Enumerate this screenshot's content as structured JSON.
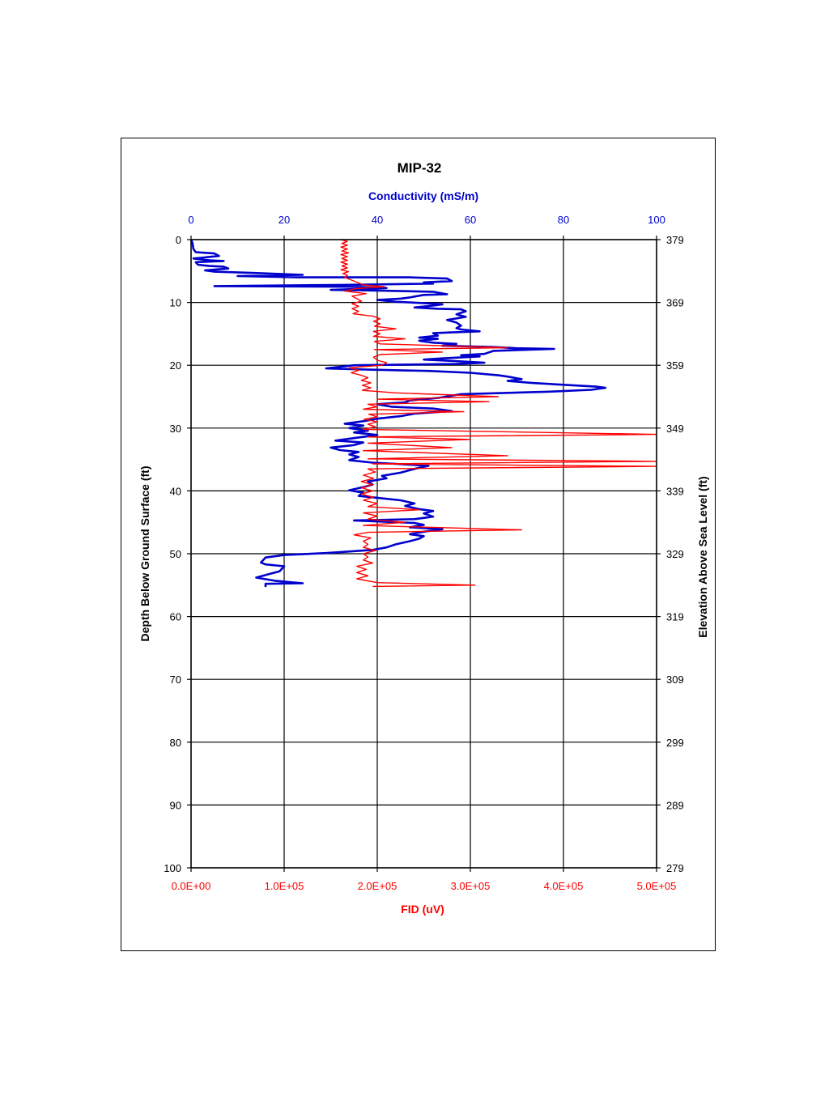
{
  "chart_data": {
    "type": "line",
    "title": "MIP-32",
    "ylabel_left": "Depth Below Ground Surface (ft)",
    "ylabel_right": "Elevation Above Sea Level (ft)",
    "ylim": [
      0,
      100
    ],
    "y_ticks": [
      0,
      10,
      20,
      30,
      40,
      50,
      60,
      70,
      80,
      90,
      100
    ],
    "y_ticks_right": [
      "379",
      "369",
      "359",
      "349",
      "339",
      "329",
      "319",
      "309",
      "299",
      "289",
      "279"
    ],
    "x_top": {
      "label": "Conductivity (mS/m)",
      "range": [
        0,
        100
      ],
      "ticks": [
        "0",
        "20",
        "40",
        "60",
        "80",
        "100"
      ],
      "color": "#0000cc"
    },
    "x_bottom": {
      "label": "FID (uV)",
      "range": [
        0,
        500000
      ],
      "ticks": [
        "0.0E+00",
        "1.0E+05",
        "2.0E+05",
        "3.0E+05",
        "4.0E+05",
        "5.0E+05"
      ],
      "color": "#ff0000"
    },
    "grid": true,
    "series": [
      {
        "axis": "top",
        "color": "#0000cc",
        "points": [
          [
            0,
            0
          ],
          [
            0.3,
            0.5
          ],
          [
            0.4,
            1
          ],
          [
            0.5,
            1.5
          ],
          [
            1,
            2
          ],
          [
            5,
            2.2
          ],
          [
            6,
            2.6
          ],
          [
            2,
            2.9
          ],
          [
            0.5,
            3
          ],
          [
            4,
            3.3
          ],
          [
            7,
            3.4
          ],
          [
            1,
            3.6
          ],
          [
            1.5,
            4
          ],
          [
            4,
            4.2
          ],
          [
            7,
            4.3
          ],
          [
            8,
            4.6
          ],
          [
            3,
            4.9
          ],
          [
            5,
            5.1
          ],
          [
            13,
            5.3
          ],
          [
            24,
            5.6
          ],
          [
            10,
            5.8
          ],
          [
            23,
            6
          ],
          [
            47,
            6
          ],
          [
            55,
            6.2
          ],
          [
            56,
            6.6
          ],
          [
            50,
            6.8
          ],
          [
            52,
            7
          ],
          [
            33,
            7.2
          ],
          [
            5,
            7.4
          ],
          [
            35,
            7.5
          ],
          [
            42,
            7.7
          ],
          [
            30,
            8
          ],
          [
            40,
            8.1
          ],
          [
            52,
            8.3
          ],
          [
            55,
            8.7
          ],
          [
            50,
            8.8
          ],
          [
            47,
            9.2
          ],
          [
            45,
            9.4
          ],
          [
            40,
            9.6
          ],
          [
            44,
            9.9
          ],
          [
            50,
            10.1
          ],
          [
            54,
            10.3
          ],
          [
            52,
            10.5
          ],
          [
            48,
            10.8
          ],
          [
            53,
            11
          ],
          [
            58,
            11.1
          ],
          [
            59,
            11.4
          ],
          [
            57,
            11.9
          ],
          [
            58,
            12.1
          ],
          [
            59,
            12.3
          ],
          [
            55,
            12.8
          ],
          [
            57,
            13.2
          ],
          [
            58,
            13.7
          ],
          [
            57,
            14.1
          ],
          [
            58,
            14.3
          ],
          [
            62,
            14.6
          ],
          [
            55,
            14.8
          ],
          [
            52,
            14.9
          ],
          [
            53,
            15.3
          ],
          [
            49,
            15.6
          ],
          [
            53,
            15.8
          ],
          [
            49,
            16.1
          ],
          [
            52,
            16.4
          ],
          [
            57,
            16.6
          ],
          [
            54,
            16.9
          ],
          [
            65,
            17.1
          ],
          [
            70,
            17.3
          ],
          [
            78,
            17.4
          ],
          [
            65,
            17.7
          ],
          [
            63,
            18.2
          ],
          [
            58,
            18.4
          ],
          [
            62,
            18.6
          ],
          [
            54,
            18.9
          ],
          [
            50,
            19.1
          ],
          [
            56,
            19.3
          ],
          [
            63,
            19.6
          ],
          [
            57,
            19.8
          ],
          [
            35,
            20
          ],
          [
            29,
            20.5
          ],
          [
            38,
            20.7
          ],
          [
            51,
            20.9
          ],
          [
            60,
            21.2
          ],
          [
            66,
            21.6
          ],
          [
            68,
            21.8
          ],
          [
            71,
            22.2
          ],
          [
            68,
            22.5
          ],
          [
            73,
            22.8
          ],
          [
            80,
            23.1
          ],
          [
            87,
            23.4
          ],
          [
            89,
            23.6
          ],
          [
            86,
            23.9
          ],
          [
            77,
            24.2
          ],
          [
            58,
            24.6
          ],
          [
            53,
            25.2
          ],
          [
            47,
            25.6
          ],
          [
            46,
            25.9
          ],
          [
            40,
            26.2
          ],
          [
            43,
            26.6
          ],
          [
            52,
            26.9
          ],
          [
            56,
            27.3
          ],
          [
            48,
            27.7
          ],
          [
            45,
            28.1
          ],
          [
            40,
            28.5
          ],
          [
            37,
            28.9
          ],
          [
            33,
            29.3
          ],
          [
            37,
            29.6
          ],
          [
            34,
            30
          ],
          [
            38,
            30.4
          ],
          [
            35,
            30.7
          ],
          [
            40,
            31.1
          ],
          [
            35,
            31.6
          ],
          [
            31,
            32
          ],
          [
            37,
            32.3
          ],
          [
            35,
            32.7
          ],
          [
            30,
            33.1
          ],
          [
            32,
            33.5
          ],
          [
            36,
            33.8
          ],
          [
            34,
            34.2
          ],
          [
            36,
            34.6
          ],
          [
            34,
            35.1
          ],
          [
            39,
            35.5
          ],
          [
            44,
            35.7
          ],
          [
            51,
            36
          ],
          [
            48,
            36.5
          ],
          [
            45,
            37.1
          ],
          [
            41,
            37.6
          ],
          [
            42,
            38
          ],
          [
            38,
            38.5
          ],
          [
            39,
            39
          ],
          [
            37,
            39.4
          ],
          [
            34,
            39.9
          ],
          [
            37,
            40.3
          ],
          [
            36,
            40.8
          ],
          [
            40,
            41.1
          ],
          [
            45,
            41.5
          ],
          [
            48,
            42
          ],
          [
            46,
            42.4
          ],
          [
            49,
            42.9
          ],
          [
            52,
            43.2
          ],
          [
            50,
            43.6
          ],
          [
            52,
            44.1
          ],
          [
            48,
            44.5
          ],
          [
            35,
            44.7
          ],
          [
            48,
            45.1
          ],
          [
            50,
            45.4
          ],
          [
            47,
            45.8
          ],
          [
            54,
            46.1
          ],
          [
            50,
            46.5
          ],
          [
            47,
            46.9
          ],
          [
            50,
            47.2
          ],
          [
            49,
            47.6
          ],
          [
            47,
            48
          ],
          [
            44,
            48.5
          ],
          [
            42,
            49
          ],
          [
            39,
            49.4
          ],
          [
            29,
            49.9
          ],
          [
            20,
            50.2
          ],
          [
            16,
            50.6
          ],
          [
            15,
            51.4
          ],
          [
            16,
            51.7
          ],
          [
            20,
            52
          ],
          [
            19,
            52.8
          ],
          [
            17,
            53.2
          ],
          [
            14,
            53.8
          ],
          [
            18,
            54.3
          ],
          [
            24,
            54.7
          ],
          [
            16,
            54.8
          ],
          [
            16,
            55.3
          ]
        ]
      },
      {
        "axis": "bottom",
        "color": "#ff0000",
        "points": [
          [
            161000,
            0
          ],
          [
            168000,
            0.3
          ],
          [
            162000,
            0.6
          ],
          [
            168000,
            0.9
          ],
          [
            161000,
            1.2
          ],
          [
            168000,
            1.5
          ],
          [
            162000,
            1.8
          ],
          [
            169000,
            2.1
          ],
          [
            161000,
            2.4
          ],
          [
            168000,
            2.7
          ],
          [
            162000,
            3
          ],
          [
            168000,
            3.3
          ],
          [
            161000,
            3.6
          ],
          [
            168000,
            3.9
          ],
          [
            162000,
            4.2
          ],
          [
            168000,
            4.5
          ],
          [
            161000,
            4.8
          ],
          [
            169000,
            5.1
          ],
          [
            163000,
            5.4
          ],
          [
            168000,
            5.7
          ],
          [
            165000,
            6
          ],
          [
            185000,
            7.2
          ],
          [
            208000,
            7.5
          ],
          [
            177000,
            7.8
          ],
          [
            165000,
            8.2
          ],
          [
            188000,
            8.6
          ],
          [
            173000,
            9
          ],
          [
            178000,
            9.4
          ],
          [
            183000,
            9.8
          ],
          [
            173000,
            10.2
          ],
          [
            180000,
            10.6
          ],
          [
            173000,
            11
          ],
          [
            180000,
            11.4
          ],
          [
            174000,
            11.8
          ],
          [
            196000,
            12.2
          ],
          [
            203000,
            12.6
          ],
          [
            196000,
            13
          ],
          [
            203000,
            13.4
          ],
          [
            197000,
            13.8
          ],
          [
            220000,
            14.2
          ],
          [
            196000,
            14.6
          ],
          [
            203000,
            15
          ],
          [
            196000,
            15.4
          ],
          [
            230000,
            15.8
          ],
          [
            197000,
            16.2
          ],
          [
            203000,
            16.6
          ],
          [
            340000,
            17.2
          ],
          [
            197000,
            17.5
          ],
          [
            270000,
            17.9
          ],
          [
            203000,
            18.3
          ],
          [
            196000,
            18.7
          ],
          [
            200000,
            19.2
          ],
          [
            210000,
            19.6
          ],
          [
            205000,
            20
          ],
          [
            170000,
            20.4
          ],
          [
            180000,
            20.8
          ],
          [
            172000,
            21.2
          ],
          [
            183000,
            21.6
          ],
          [
            190000,
            22
          ],
          [
            183000,
            22.4
          ],
          [
            193000,
            22.8
          ],
          [
            184000,
            23.2
          ],
          [
            193000,
            23.6
          ],
          [
            184000,
            24
          ],
          [
            220000,
            24.4
          ],
          [
            330000,
            25
          ],
          [
            200000,
            25.4
          ],
          [
            320000,
            25.8
          ],
          [
            190000,
            26.2
          ],
          [
            200000,
            26.6
          ],
          [
            185000,
            27
          ],
          [
            293000,
            27.4
          ],
          [
            191000,
            27.8
          ],
          [
            200000,
            28.2
          ],
          [
            186000,
            28.6
          ],
          [
            200000,
            29
          ],
          [
            190000,
            29.4
          ],
          [
            198000,
            29.8
          ],
          [
            185000,
            30.2
          ],
          [
            500000,
            31
          ],
          [
            190000,
            31.4
          ],
          [
            300000,
            31.8
          ],
          [
            190000,
            32.4
          ],
          [
            280000,
            33.1
          ],
          [
            185000,
            33.6
          ],
          [
            340000,
            34.4
          ],
          [
            190000,
            34.9
          ],
          [
            500000,
            35.3
          ],
          [
            195000,
            35.7
          ],
          [
            500000,
            36.1
          ],
          [
            190000,
            36.5
          ],
          [
            198000,
            37
          ],
          [
            185000,
            37.5
          ],
          [
            196000,
            38
          ],
          [
            183000,
            38.5
          ],
          [
            195000,
            39
          ],
          [
            183000,
            39.5
          ],
          [
            195000,
            40
          ],
          [
            183000,
            40.5
          ],
          [
            196000,
            41
          ],
          [
            185000,
            41.5
          ],
          [
            200000,
            42
          ],
          [
            190000,
            42.5
          ],
          [
            245000,
            43
          ],
          [
            185000,
            43.5
          ],
          [
            200000,
            44
          ],
          [
            190000,
            44.5
          ],
          [
            230000,
            45
          ],
          [
            185000,
            45.5
          ],
          [
            355000,
            46.2
          ],
          [
            190000,
            46.6
          ],
          [
            175000,
            47
          ],
          [
            193000,
            47.5
          ],
          [
            185000,
            48
          ],
          [
            190000,
            48.5
          ],
          [
            185000,
            49
          ],
          [
            198000,
            49.5
          ],
          [
            185000,
            50
          ],
          [
            190000,
            50.5
          ],
          [
            185000,
            51
          ],
          [
            195000,
            51.5
          ],
          [
            178000,
            52
          ],
          [
            188000,
            52.5
          ],
          [
            178000,
            53
          ],
          [
            190000,
            53.5
          ],
          [
            178000,
            54
          ],
          [
            200000,
            54.6
          ],
          [
            305000,
            55
          ],
          [
            195000,
            55.2
          ]
        ]
      }
    ]
  }
}
